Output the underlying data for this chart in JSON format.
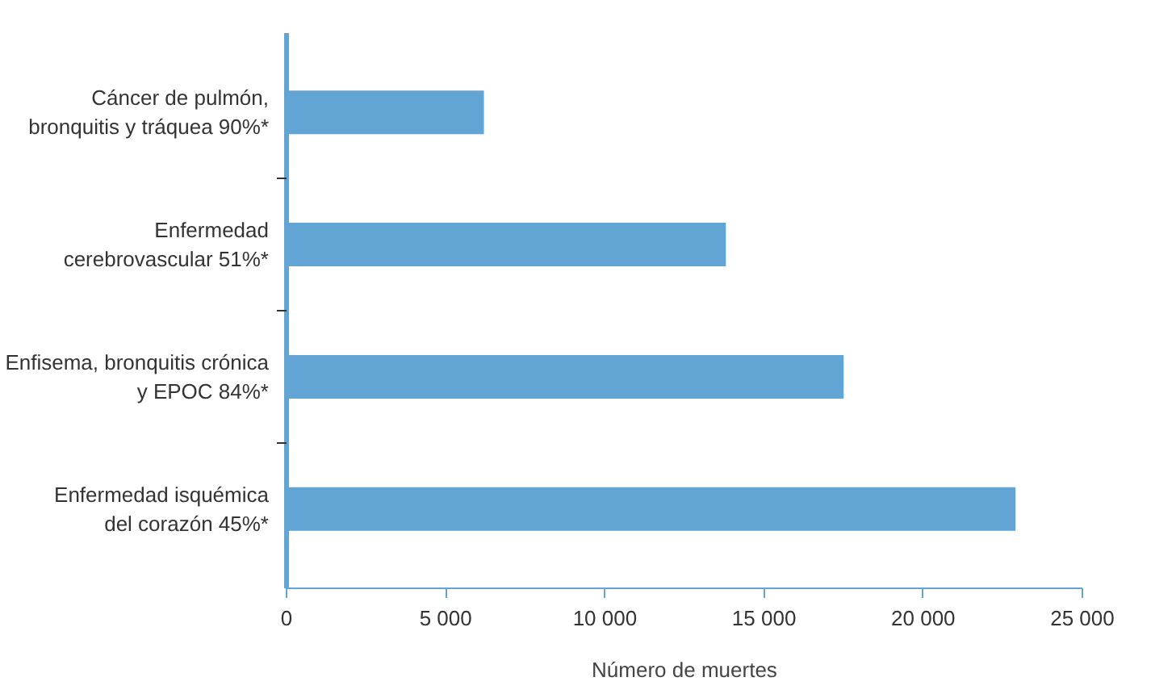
{
  "chart_data": {
    "type": "bar",
    "orientation": "horizontal",
    "xlabel": "Número de muertes",
    "categories": [
      "Cáncer de pulmón,\nbronquitis y tráquea 90%*",
      "Enfermedad\ncerebrovascular 51%*",
      "Enfisema, bronquitis crónica\ny EPOC 84%*",
      "Enfermedad isquémica\ndel corazón 45%*"
    ],
    "values": [
      6200,
      13800,
      17500,
      22900
    ],
    "color": "#62a4d4",
    "xlim": [
      0,
      25000
    ],
    "xticks": [
      0,
      {
        "value": 5000,
        "label": "5 000"
      },
      {
        "value": 10000,
        "label": "10 000"
      },
      {
        "value": 15000,
        "label": "15 000"
      },
      {
        "value": 20000,
        "label": "20 000"
      },
      {
        "value": 25000,
        "label": "25 000"
      }
    ],
    "grid": false
  }
}
